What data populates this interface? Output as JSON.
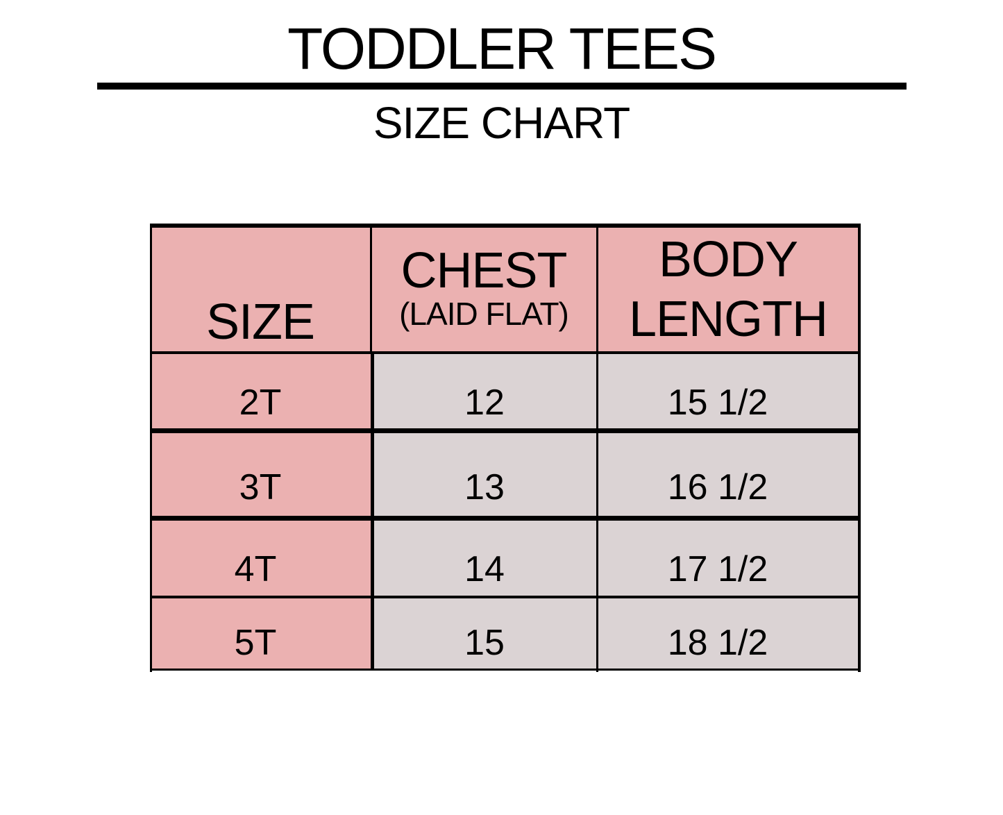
{
  "title": "TODDLER TEES",
  "subtitle": "SIZE CHART",
  "colors": {
    "header": "#ebb1b1",
    "size_column": "#ebb1b1",
    "value_cells": "#dbd3d4",
    "border": "#000000"
  },
  "table": {
    "headers": {
      "size": "SIZE",
      "chest": "CHEST",
      "chest_note": "(LAID FLAT)",
      "body_line1": "BODY",
      "body_line2": "LENGTH"
    },
    "rows": [
      {
        "size": "2T",
        "chest": "12",
        "body_length": "15 1/2"
      },
      {
        "size": "3T",
        "chest": "13",
        "body_length": "16 1/2"
      },
      {
        "size": "4T",
        "chest": "14",
        "body_length": "17 1/2"
      },
      {
        "size": "5T",
        "chest": "15",
        "body_length": "18 1/2"
      }
    ]
  }
}
